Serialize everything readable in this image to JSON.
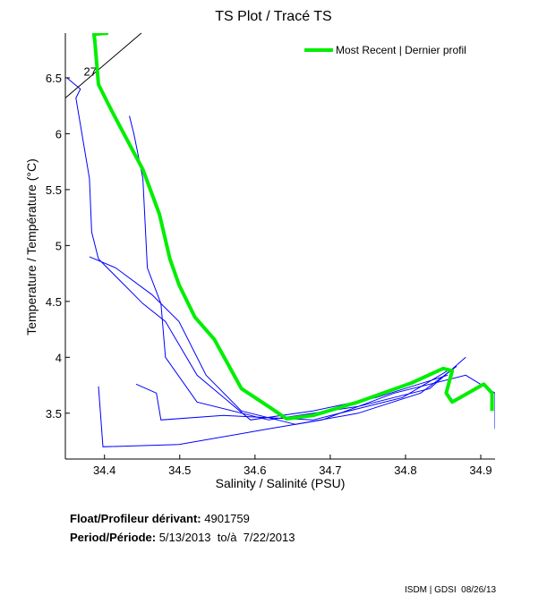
{
  "chart_data": {
    "type": "line",
    "title": "TS Plot / Tracé TS",
    "xlabel": "Salinity / Salinité (PSU)",
    "ylabel": "Temperature / Température (°C)",
    "xlim": [
      34.348,
      34.919
    ],
    "ylim": [
      3.09,
      6.9
    ],
    "xticks": [
      34.4,
      34.5,
      34.6,
      34.7,
      34.8,
      34.9
    ],
    "xtick_labels": [
      "34.4",
      "34.5",
      "34.6",
      "34.7",
      "34.8",
      "34.9"
    ],
    "yticks": [
      3.5,
      4,
      4.5,
      5,
      5.5,
      6,
      6.5
    ],
    "ytick_labels": [
      "3.5",
      "4",
      "4.5",
      "5",
      "5.5",
      "6",
      "6.5"
    ],
    "grid": false,
    "legend": {
      "position": "top-right",
      "label": "Most Recent | Dernier profil"
    },
    "isopycnal": {
      "label": "27",
      "s": [
        34.348,
        34.449
      ],
      "t": [
        6.32,
        6.9
      ],
      "label_s": 34.37,
      "label_t": 6.52
    },
    "most_recent": {
      "color": "#00ee00",
      "s": [
        34.405,
        34.386,
        34.387,
        34.392,
        34.41,
        34.451,
        34.473,
        34.487,
        34.499,
        34.52,
        34.546,
        34.582,
        34.618,
        34.642,
        34.677,
        34.737,
        34.808,
        34.85,
        34.862,
        34.854,
        34.862,
        34.904,
        34.915,
        34.915
      ],
      "t": [
        6.9,
        6.89,
        6.84,
        6.44,
        6.2,
        5.68,
        5.28,
        4.88,
        4.65,
        4.36,
        4.16,
        3.72,
        3.56,
        3.45,
        3.48,
        3.6,
        3.77,
        3.9,
        3.88,
        3.68,
        3.6,
        3.76,
        3.68,
        3.52
      ]
    },
    "history_color": "#0000ff",
    "history": [
      {
        "s": [
          34.35,
          34.368,
          34.362,
          34.38,
          34.383,
          34.392,
          34.451,
          34.481,
          34.523,
          34.594,
          34.677,
          34.761,
          34.856
        ],
        "t": [
          6.5,
          6.4,
          6.32,
          5.6,
          5.12,
          4.88,
          4.48,
          4.32,
          3.84,
          3.44,
          3.52,
          3.64,
          3.84
        ]
      },
      {
        "s": [
          34.433,
          34.439,
          34.451,
          34.457,
          34.475,
          34.481,
          34.523,
          34.618,
          34.737,
          34.832,
          34.88
        ],
        "t": [
          6.16,
          6.0,
          5.6,
          4.8,
          4.48,
          4.0,
          3.6,
          3.44,
          3.56,
          3.72,
          4.0
        ]
      },
      {
        "s": [
          34.38,
          34.415,
          34.463,
          34.499,
          34.535,
          34.582,
          34.654,
          34.737,
          34.82,
          34.868
        ],
        "t": [
          4.9,
          4.8,
          4.56,
          4.32,
          3.84,
          3.52,
          3.4,
          3.5,
          3.68,
          3.92
        ]
      },
      {
        "s": [
          34.392,
          34.398,
          34.499,
          34.618,
          34.689,
          34.785,
          34.88,
          34.919,
          34.919
        ],
        "t": [
          3.74,
          3.2,
          3.22,
          3.36,
          3.44,
          3.68,
          3.84,
          3.68,
          3.36
        ]
      },
      {
        "s": [
          34.442,
          34.469,
          34.475,
          34.558,
          34.677,
          34.796,
          34.856
        ],
        "t": [
          3.76,
          3.68,
          3.44,
          3.48,
          3.44,
          3.64,
          3.88
        ]
      }
    ]
  },
  "info": {
    "float_label": "Float/Profileur dérivant:",
    "float_id": "4901759",
    "period_label": "Period/Période:",
    "period_value": "5/13/2013  to/à  7/22/2013"
  },
  "footer": "ISDM | GDSI  08/26/13"
}
